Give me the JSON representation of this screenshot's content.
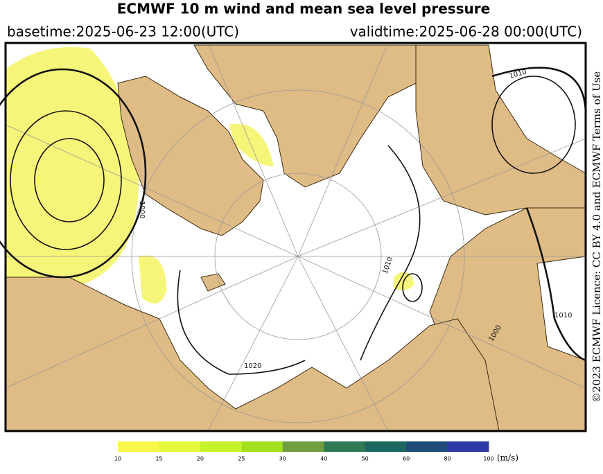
{
  "header": {
    "title": "ECMWF 10 m wind and mean sea level pressure",
    "basetime": "basetime:2025-06-23 12:00(UTC)",
    "validtime": "validtime:2025-06-28 00:00(UTC)"
  },
  "map": {
    "isobar_labels": [
      "1010",
      "1000",
      "1020",
      "1010",
      "1010",
      "1000"
    ]
  },
  "credit": "©2023 ECMWF Licence: CC BY 4.0 and ECMWF Terms of Use",
  "colorbar": {
    "ticks": [
      10,
      15,
      20,
      25,
      30,
      40,
      50,
      60,
      80,
      100
    ],
    "colors": [
      "#f8f84a",
      "#e6f83a",
      "#c6f22a",
      "#a2e01e",
      "#6e9e3e",
      "#2f7a52",
      "#1c6660",
      "#1e4c78",
      "#2b3aa6"
    ],
    "unit": "(m/s)"
  }
}
